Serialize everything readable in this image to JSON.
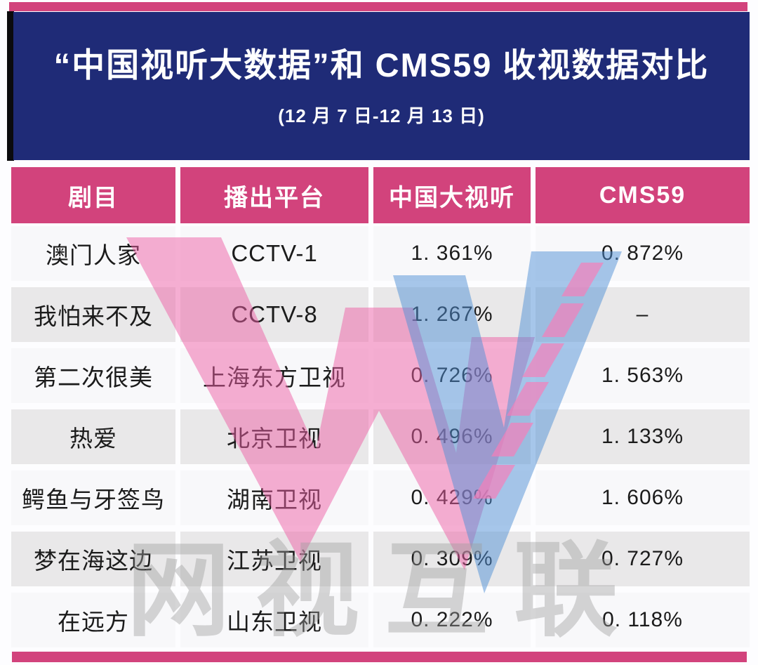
{
  "banner": {
    "title": "“中国视听大数据”和 CMS59 收视数据对比",
    "subtitle": "(12 月 7 日-12 月 13 日)",
    "bg": "#1F2B77",
    "accent_bar_color": "#D2437C"
  },
  "table": {
    "headers": [
      "剧目",
      "播出平台",
      "中国大视听",
      "CMS59"
    ],
    "header_bg": "#D2437C",
    "row_bg_light": "#F8F8FA",
    "row_bg_dark": "#E9E8E9",
    "rows": [
      {
        "title": "澳门人家",
        "platform": "CCTV-1",
        "dashiting": "1. 361%",
        "cms59": "0. 872%"
      },
      {
        "title": "我怕来不及",
        "platform": "CCTV-8",
        "dashiting": "1. 267%",
        "cms59": "–"
      },
      {
        "title": "第二次很美",
        "platform": "上海东方卫视",
        "dashiting": "0. 726%",
        "cms59": "1. 563%"
      },
      {
        "title": "热爱",
        "platform": "北京卫视",
        "dashiting": "0. 496%",
        "cms59": "1. 133%"
      },
      {
        "title": "鳄鱼与牙签鸟",
        "platform": "湖南卫视",
        "dashiting": "0. 429%",
        "cms59": "1. 606%"
      },
      {
        "title": "梦在海这边",
        "platform": "江苏卫视",
        "dashiting": "0. 309%",
        "cms59": "0. 727%"
      },
      {
        "title": "在远方",
        "platform": "山东卫视",
        "dashiting": "0. 222%",
        "cms59": "0. 118%"
      }
    ]
  },
  "watermark": {
    "brand_text": "网视互联",
    "pink": "#EE5FA5",
    "blue": "#4F90D6",
    "dash_pink": "#F77DB8",
    "gray": "#9E9E9E"
  },
  "chart_data": {
    "type": "table",
    "title": "“中国视听大数据”和 CMS59 收视数据对比",
    "subtitle": "(12月7日-12月13日)",
    "columns": [
      "剧目",
      "播出平台",
      "中国大视听",
      "CMS59"
    ],
    "rows": [
      [
        "澳门人家",
        "CCTV-1",
        "1.361%",
        "0.872%"
      ],
      [
        "我怕来不及",
        "CCTV-8",
        "1.267%",
        "–"
      ],
      [
        "第二次很美",
        "上海东方卫视",
        "0.726%",
        "1.563%"
      ],
      [
        "热爱",
        "北京卫视",
        "0.496%",
        "1.133%"
      ],
      [
        "鳄鱼与牙签鸟",
        "湖南卫视",
        "0.429%",
        "1.606%"
      ],
      [
        "梦在海这边",
        "江苏卫视",
        "0.309%",
        "0.727%"
      ],
      [
        "在远方",
        "山东卫视",
        "0.222%",
        "0.118%"
      ]
    ]
  }
}
